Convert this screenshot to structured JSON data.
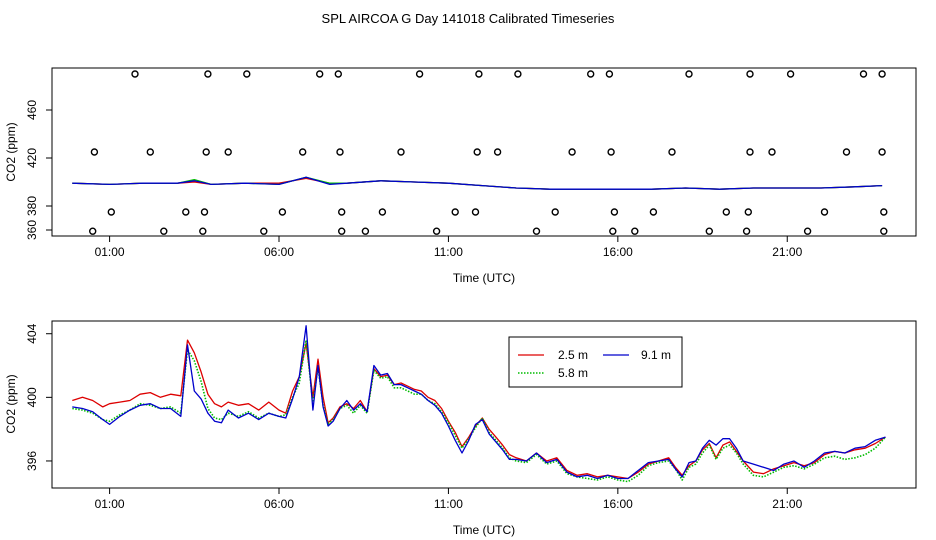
{
  "title": "SPL AIRCOA G  Day 141018  Calibrated Timeseries",
  "colors": {
    "series_2_5": "#dd0000",
    "series_5_8": "#00bb00",
    "series_9_1": "#0000cc",
    "markers": "#000000"
  },
  "chart_data": [
    {
      "type": "scatter",
      "panel": "top",
      "xlabel": "Time (UTC)",
      "ylabel": "CO2 (ppm)",
      "xlim": [
        -0.7,
        24.8
      ],
      "ylim": [
        355,
        495
      ],
      "x_ticks": [
        1,
        6,
        11,
        16,
        21
      ],
      "x_tick_labels": [
        "01:00",
        "06:00",
        "11:00",
        "16:00",
        "21:00"
      ],
      "y_ticks": [
        360,
        380,
        420,
        460
      ],
      "y_tick_labels": [
        "360",
        "380",
        "420",
        "460"
      ],
      "lines": [
        {
          "name": "2.5 m",
          "color": "#dd0000",
          "x": [
            -0.1,
            1,
            2,
            3,
            3.5,
            4,
            5,
            6,
            6.8,
            7.5,
            8,
            9,
            10,
            11,
            12,
            13,
            14,
            15,
            16,
            17,
            18,
            19,
            20,
            21,
            22,
            23,
            23.8
          ],
          "y": [
            399,
            398,
            399,
            399,
            400,
            398,
            399,
            399,
            403,
            399,
            399,
            401,
            400,
            399,
            397,
            395,
            394,
            394,
            394,
            394,
            395,
            394,
            395,
            395,
            395,
            396,
            397
          ]
        },
        {
          "name": "5.8 m",
          "color": "#00bb00",
          "x": [
            -0.1,
            1,
            2,
            3,
            3.5,
            4,
            5,
            6,
            6.8,
            7.5,
            8,
            9,
            10,
            11,
            12,
            13,
            14,
            15,
            16,
            17,
            18,
            19,
            20,
            21,
            22,
            23,
            23.8
          ],
          "y": [
            399,
            398,
            399,
            399,
            402,
            398,
            399,
            398,
            404,
            399,
            399,
            401,
            400,
            399,
            397,
            395,
            394,
            394,
            394,
            394,
            395,
            394,
            395,
            395,
            395,
            396,
            397
          ]
        },
        {
          "name": "9.1 m",
          "color": "#0000cc",
          "x": [
            -0.1,
            1,
            2,
            3,
            3.5,
            4,
            5,
            6,
            6.8,
            7.5,
            8,
            9,
            10,
            11,
            12,
            13,
            14,
            15,
            16,
            17,
            18,
            19,
            20,
            21,
            22,
            23,
            23.8
          ],
          "y": [
            399,
            398,
            399,
            399,
            401,
            398,
            399,
            398,
            404,
            398,
            399,
            401,
            400,
            399,
            397,
            395,
            394,
            394,
            394,
            394,
            395,
            394,
            395,
            395,
            395,
            396,
            397
          ]
        }
      ],
      "markers": {
        "x": [
          1.75,
          3.9,
          5.05,
          7.2,
          7.75,
          10.15,
          11.9,
          13.05,
          15.2,
          15.75,
          18.1,
          19.9,
          21.1,
          23.25,
          23.8,
          0.55,
          2.2,
          3.85,
          4.5,
          6.7,
          7.8,
          9.6,
          11.85,
          12.45,
          14.65,
          15.8,
          17.6,
          19.9,
          20.55,
          22.75,
          23.8,
          1.05,
          3.25,
          3.8,
          6.1,
          7.85,
          9.05,
          11.2,
          11.8,
          14.15,
          15.9,
          17.05,
          19.2,
          19.85,
          22.1,
          23.85,
          0.5,
          2.6,
          3.75,
          5.55,
          7.85,
          8.55,
          10.65,
          13.6,
          15.85,
          16.5,
          18.7,
          19.8,
          21.6,
          23.85
        ],
        "y": [
          490,
          490,
          490,
          490,
          490,
          490,
          490,
          490,
          490,
          490,
          490,
          490,
          490,
          490,
          490,
          425,
          425,
          425,
          425,
          425,
          425,
          425,
          425,
          425,
          425,
          425,
          425,
          425,
          425,
          425,
          425,
          375,
          375,
          375,
          375,
          375,
          375,
          375,
          375,
          375,
          375,
          375,
          375,
          375,
          375,
          375,
          359,
          359,
          359,
          359,
          359,
          359,
          359,
          359,
          359,
          359,
          359,
          359,
          359,
          359
        ]
      }
    },
    {
      "type": "line",
      "panel": "bottom",
      "xlabel": "Time (UTC)",
      "ylabel": "CO2 (ppm)",
      "xlim": [
        -0.7,
        24.8
      ],
      "ylim": [
        394.3,
        404.8
      ],
      "x_ticks": [
        1,
        6,
        11,
        16,
        21
      ],
      "x_tick_labels": [
        "01:00",
        "06:00",
        "11:00",
        "16:00",
        "21:00"
      ],
      "y_ticks": [
        396,
        400,
        404
      ],
      "y_tick_labels": [
        "396",
        "400",
        "404"
      ],
      "legend_position": "top-center",
      "legend": [
        "2.5 m",
        "9.1 m",
        "5.8 m"
      ],
      "series": [
        {
          "name": "2.5 m",
          "color": "#dd0000",
          "style": "solid",
          "x": [
            -0.1,
            0.2,
            0.5,
            0.8,
            1.0,
            1.3,
            1.6,
            1.9,
            2.2,
            2.5,
            2.8,
            3.1,
            3.3,
            3.5,
            3.7,
            3.9,
            4.1,
            4.3,
            4.5,
            4.8,
            5.1,
            5.4,
            5.7,
            6.0,
            6.2,
            6.4,
            6.6,
            6.8,
            7.0,
            7.15,
            7.3,
            7.45,
            7.6,
            7.8,
            8.0,
            8.2,
            8.4,
            8.6,
            8.8,
            9.0,
            9.2,
            9.4,
            9.6,
            9.8,
            10.0,
            10.2,
            10.4,
            10.6,
            10.8,
            11.0,
            11.2,
            11.4,
            11.6,
            11.8,
            12.0,
            12.2,
            12.4,
            12.6,
            12.8,
            13.0,
            13.3,
            13.6,
            13.9,
            14.2,
            14.5,
            14.8,
            15.1,
            15.4,
            15.7,
            16.0,
            16.3,
            16.6,
            16.9,
            17.2,
            17.5,
            17.7,
            17.9,
            18.1,
            18.3,
            18.5,
            18.7,
            18.9,
            19.1,
            19.3,
            19.5,
            19.7,
            20.0,
            20.3,
            20.6,
            20.9,
            21.2,
            21.5,
            21.8,
            22.1,
            22.4,
            22.7,
            23.0,
            23.3,
            23.6,
            23.9
          ],
          "y": [
            399.8,
            400.0,
            399.8,
            399.4,
            399.6,
            399.7,
            399.8,
            400.2,
            400.3,
            400.0,
            400.2,
            400.1,
            403.6,
            402.8,
            401.6,
            400.2,
            399.6,
            399.4,
            399.7,
            399.5,
            399.6,
            399.2,
            399.7,
            399.2,
            399.0,
            400.4,
            401.3,
            403.4,
            400.0,
            402.4,
            400.0,
            398.4,
            398.7,
            399.4,
            399.6,
            399.3,
            399.8,
            399.1,
            401.8,
            401.3,
            401.4,
            400.8,
            400.9,
            400.7,
            400.5,
            400.4,
            400.0,
            399.8,
            399.3,
            398.5,
            397.8,
            396.9,
            397.5,
            398.2,
            398.7,
            398.0,
            397.5,
            397.0,
            396.4,
            396.2,
            396.0,
            396.5,
            396.0,
            396.2,
            395.4,
            395.1,
            395.2,
            395.0,
            395.1,
            395.0,
            394.9,
            395.3,
            395.8,
            396.0,
            396.2,
            395.6,
            395.1,
            395.7,
            396.0,
            396.7,
            397.1,
            396.2,
            397.0,
            397.2,
            396.6,
            396.0,
            395.3,
            395.2,
            395.5,
            395.7,
            395.9,
            395.7,
            395.9,
            396.4,
            396.6,
            396.5,
            396.7,
            396.8,
            397.1,
            397.5
          ]
        },
        {
          "name": "5.8 m",
          "color": "#00bb00",
          "style": "dotted",
          "x": [
            -0.1,
            0.2,
            0.5,
            0.8,
            1.0,
            1.3,
            1.6,
            1.9,
            2.2,
            2.5,
            2.8,
            3.1,
            3.3,
            3.5,
            3.7,
            3.9,
            4.1,
            4.3,
            4.5,
            4.8,
            5.1,
            5.4,
            5.7,
            6.0,
            6.2,
            6.4,
            6.6,
            6.8,
            7.0,
            7.15,
            7.3,
            7.45,
            7.6,
            7.8,
            8.0,
            8.2,
            8.4,
            8.6,
            8.8,
            9.0,
            9.2,
            9.4,
            9.6,
            9.8,
            10.0,
            10.2,
            10.4,
            10.6,
            10.8,
            11.0,
            11.2,
            11.4,
            11.6,
            11.8,
            12.0,
            12.2,
            12.4,
            12.6,
            12.8,
            13.0,
            13.3,
            13.6,
            13.9,
            14.2,
            14.5,
            14.8,
            15.1,
            15.4,
            15.7,
            16.0,
            16.3,
            16.6,
            16.9,
            17.2,
            17.5,
            17.7,
            17.9,
            18.1,
            18.3,
            18.5,
            18.7,
            18.9,
            19.1,
            19.3,
            19.5,
            19.7,
            20.0,
            20.3,
            20.6,
            20.9,
            21.2,
            21.5,
            21.8,
            22.1,
            22.4,
            22.7,
            23.0,
            23.3,
            23.6,
            23.9
          ],
          "y": [
            399.3,
            399.2,
            399.0,
            398.6,
            398.5,
            398.9,
            399.2,
            399.6,
            399.5,
            399.3,
            399.4,
            399.0,
            403.0,
            402.3,
            401.0,
            399.3,
            398.7,
            398.6,
            399.0,
            398.8,
            399.1,
            398.7,
            399.0,
            398.8,
            398.9,
            400.0,
            400.9,
            403.6,
            399.6,
            401.9,
            399.5,
            398.3,
            398.6,
            399.3,
            399.5,
            399.0,
            399.5,
            399.0,
            401.7,
            401.2,
            401.3,
            400.6,
            400.6,
            400.4,
            400.2,
            400.2,
            399.8,
            399.6,
            399.1,
            398.4,
            397.6,
            396.8,
            397.4,
            398.1,
            398.7,
            397.8,
            397.3,
            396.8,
            396.2,
            396.0,
            395.9,
            396.4,
            395.8,
            396.0,
            395.2,
            395.0,
            394.9,
            394.8,
            395.0,
            394.8,
            394.7,
            395.1,
            395.7,
            395.9,
            396.0,
            395.5,
            394.8,
            395.6,
            395.8,
            396.5,
            397.0,
            396.1,
            396.8,
            397.0,
            396.5,
            395.8,
            395.1,
            395.0,
            395.3,
            395.6,
            395.7,
            395.5,
            395.8,
            396.2,
            396.3,
            396.1,
            396.2,
            396.4,
            396.8,
            397.5
          ]
        },
        {
          "name": "9.1 m",
          "color": "#0000cc",
          "style": "solid",
          "x": [
            -0.1,
            0.2,
            0.5,
            0.8,
            1.0,
            1.3,
            1.6,
            1.9,
            2.2,
            2.5,
            2.8,
            3.1,
            3.3,
            3.5,
            3.7,
            3.9,
            4.1,
            4.3,
            4.5,
            4.8,
            5.1,
            5.4,
            5.7,
            6.0,
            6.2,
            6.4,
            6.6,
            6.8,
            7.0,
            7.15,
            7.3,
            7.45,
            7.6,
            7.8,
            8.0,
            8.2,
            8.4,
            8.6,
            8.8,
            9.0,
            9.2,
            9.4,
            9.6,
            9.8,
            10.0,
            10.2,
            10.4,
            10.6,
            10.8,
            11.0,
            11.2,
            11.4,
            11.6,
            11.8,
            12.0,
            12.2,
            12.4,
            12.6,
            12.8,
            13.0,
            13.3,
            13.6,
            13.9,
            14.2,
            14.5,
            14.8,
            15.1,
            15.4,
            15.7,
            16.0,
            16.3,
            16.6,
            16.9,
            17.2,
            17.5,
            17.7,
            17.9,
            18.1,
            18.3,
            18.5,
            18.7,
            18.9,
            19.1,
            19.3,
            19.5,
            19.7,
            20.0,
            20.3,
            20.6,
            20.9,
            21.2,
            21.5,
            21.8,
            22.1,
            22.4,
            22.7,
            23.0,
            23.3,
            23.6,
            23.9
          ],
          "y": [
            399.4,
            399.3,
            399.1,
            398.6,
            398.3,
            398.8,
            399.2,
            399.5,
            399.6,
            399.3,
            399.3,
            398.8,
            403.3,
            400.4,
            399.9,
            399.0,
            398.5,
            398.4,
            399.2,
            398.7,
            399.0,
            398.6,
            399.0,
            398.8,
            398.7,
            399.9,
            401.3,
            404.5,
            399.2,
            402.0,
            399.4,
            398.2,
            398.5,
            399.3,
            399.8,
            399.2,
            399.6,
            399.1,
            402.0,
            401.4,
            401.5,
            400.8,
            400.8,
            400.6,
            400.4,
            400.2,
            399.8,
            399.5,
            399.0,
            398.2,
            397.3,
            396.5,
            397.3,
            398.3,
            398.6,
            397.7,
            397.2,
            396.7,
            396.1,
            396.1,
            396.0,
            396.5,
            395.9,
            396.1,
            395.3,
            395.0,
            395.1,
            394.9,
            395.1,
            394.9,
            394.9,
            395.4,
            395.9,
            396.0,
            396.1,
            395.5,
            395.0,
            395.9,
            396.0,
            396.8,
            397.3,
            397.0,
            397.4,
            397.4,
            396.8,
            396.0,
            395.8,
            395.6,
            395.4,
            395.8,
            396.0,
            395.6,
            396.0,
            396.5,
            396.6,
            396.5,
            396.8,
            396.9,
            397.3,
            397.5
          ]
        }
      ]
    }
  ]
}
